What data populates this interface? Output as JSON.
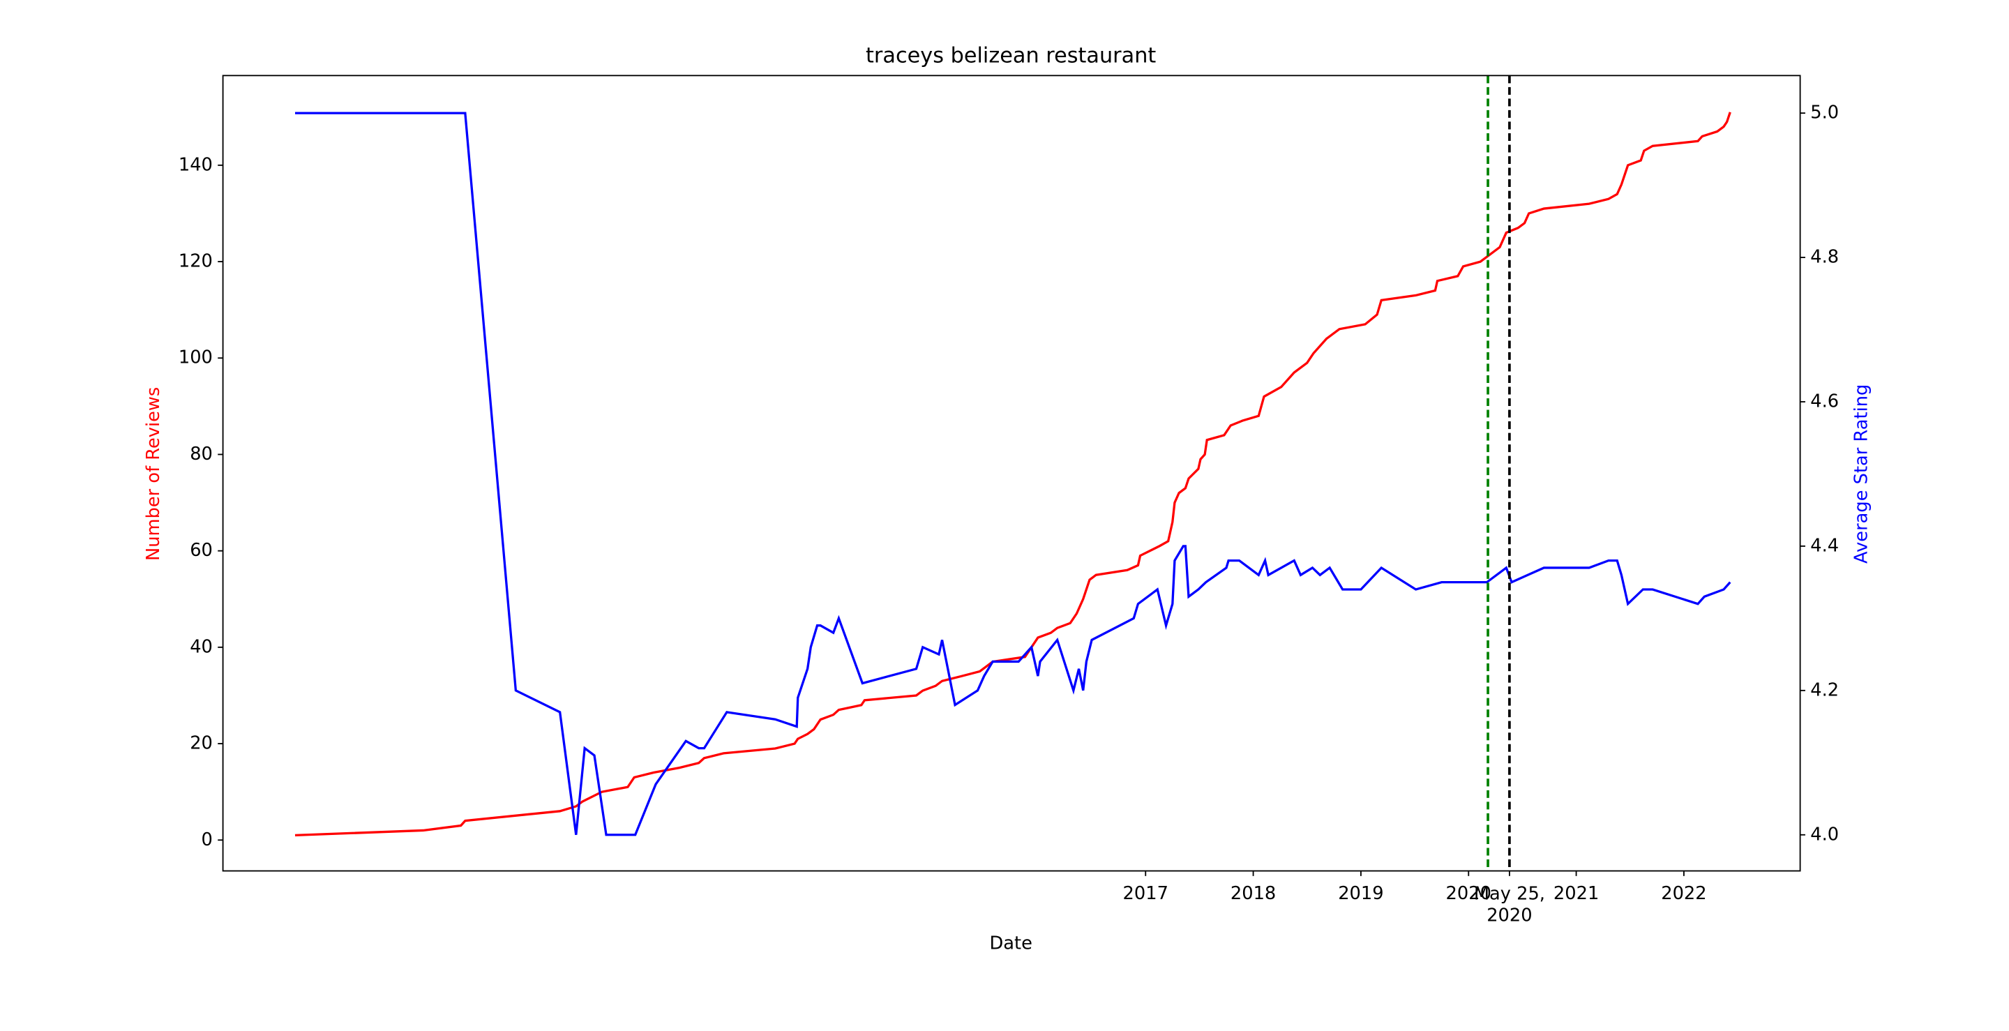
{
  "chart_data": {
    "type": "line",
    "title": "traceys belizean restaurant",
    "xlabel": "Date",
    "ylabel": "Number of Reviews",
    "y2label": "Average Star Rating",
    "ylabel_color": "red",
    "y2label_color": "blue",
    "xlim": [
      2008.43,
      2023.08
    ],
    "ylim": [
      -6.4,
      158.6
    ],
    "y2lim": [
      3.95,
      5.052
    ],
    "xticks": [
      2017,
      2018,
      2019,
      2020,
      {
        "value": 2020.38,
        "label": "May 25,\n2020"
      },
      2021,
      2022
    ],
    "yticks": [
      0,
      20,
      40,
      60,
      80,
      100,
      120,
      140
    ],
    "y2ticks": [
      {
        "value": 4,
        "label": "4.0"
      },
      4.2,
      4.4,
      4.6,
      4.8,
      {
        "value": 5,
        "label": "5.0"
      }
    ],
    "grid": false,
    "vlines": [
      {
        "x": 2020.18,
        "color": "green"
      },
      {
        "x": 2020.38,
        "color": "black"
      }
    ],
    "series": [
      {
        "color": "red",
        "axis": "y",
        "x": [
          2009.1,
          2010.29,
          2010.64,
          2010.68,
          2011.56,
          2011.71,
          2011.77,
          2011.95,
          2012.19,
          2012.25,
          2012.43,
          2012.67,
          2012.85,
          2012.9,
          2013.08,
          2013.56,
          2013.74,
          2013.77,
          2013.86,
          2013.92,
          2013.98,
          2014.1,
          2014.15,
          2014.36,
          2014.39,
          2014.87,
          2014.93,
          2015.05,
          2015.11,
          2015.29,
          2015.46,
          2015.58,
          2015.88,
          2016.0,
          2016.12,
          2016.18,
          2016.3,
          2016.36,
          2016.42,
          2016.48,
          2016.54,
          2016.83,
          2016.93,
          2016.95,
          2017.13,
          2017.21,
          2017.25,
          2017.27,
          2017.31,
          2017.37,
          2017.4,
          2017.49,
          2017.51,
          2017.55,
          2017.57,
          2017.73,
          2017.79,
          2017.9,
          2018.05,
          2018.1,
          2018.26,
          2018.38,
          2018.5,
          2018.56,
          2018.68,
          2018.74,
          2018.8,
          2019.04,
          2019.15,
          2019.19,
          2019.51,
          2019.69,
          2019.71,
          2019.9,
          2019.95,
          2020.11,
          2020.17,
          2020.29,
          2020.35,
          2020.46,
          2020.52,
          2020.56,
          2020.7,
          2021.12,
          2021.3,
          2021.38,
          2021.42,
          2021.45,
          2021.48,
          2021.6,
          2021.63,
          2021.71,
          2022.13,
          2022.17,
          2022.31,
          2022.37,
          2022.4,
          2022.43
        ],
        "values": [
          1,
          2,
          3,
          4,
          6,
          7,
          8,
          10,
          11,
          13,
          14,
          15,
          16,
          17,
          18,
          19,
          20,
          21,
          22,
          23,
          25,
          26,
          27,
          28,
          29,
          30,
          31,
          32,
          33,
          34,
          35,
          37,
          38,
          42,
          43,
          44,
          45,
          47,
          50,
          54,
          55,
          56,
          57,
          59,
          61,
          62,
          66,
          70,
          72,
          73,
          75,
          77,
          79,
          80,
          83,
          84,
          86,
          87,
          88,
          92,
          94,
          97,
          99,
          101,
          104,
          105,
          106,
          107,
          109,
          112,
          113,
          114,
          116,
          117,
          119,
          120,
          121,
          123,
          126,
          127,
          128,
          130,
          131,
          132,
          133,
          134,
          136,
          138,
          140,
          141,
          143,
          144,
          145,
          146,
          147,
          148,
          149,
          151
        ]
      },
      {
        "color": "blue",
        "axis": "y2",
        "x": [
          2009.1,
          2010.68,
          2011.15,
          2011.56,
          2011.71,
          2011.79,
          2011.88,
          2011.99,
          2012.26,
          2012.45,
          2012.73,
          2012.85,
          2012.9,
          2013.11,
          2013.56,
          2013.76,
          2013.77,
          2013.86,
          2013.89,
          2013.95,
          2013.98,
          2014.1,
          2014.15,
          2014.37,
          2014.87,
          2014.93,
          2015.08,
          2015.11,
          2015.23,
          2015.44,
          2015.5,
          2015.58,
          2015.82,
          2015.94,
          2016.0,
          2016.02,
          2016.18,
          2016.33,
          2016.38,
          2016.42,
          2016.45,
          2016.5,
          2016.89,
          2016.93,
          2017.11,
          2017.19,
          2017.25,
          2017.27,
          2017.35,
          2017.37,
          2017.4,
          2017.49,
          2017.56,
          2017.75,
          2017.77,
          2017.87,
          2018.05,
          2018.11,
          2018.14,
          2018.38,
          2018.44,
          2018.55,
          2018.62,
          2018.71,
          2018.83,
          2019.0,
          2019.19,
          2019.51,
          2019.75,
          2019.93,
          2020.17,
          2020.35,
          2020.4,
          2020.55,
          2020.7,
          2021.12,
          2021.3,
          2021.38,
          2021.42,
          2021.48,
          2021.62,
          2021.71,
          2022.13,
          2022.19,
          2022.37,
          2022.43
        ],
        "values": [
          5.0,
          5.0,
          4.2,
          4.17,
          4.0,
          4.12,
          4.11,
          4.0,
          4.0,
          4.07,
          4.13,
          4.12,
          4.12,
          4.17,
          4.16,
          4.15,
          4.19,
          4.23,
          4.26,
          4.29,
          4.29,
          4.28,
          4.3,
          4.21,
          4.23,
          4.26,
          4.25,
          4.27,
          4.18,
          4.2,
          4.22,
          4.24,
          4.24,
          4.26,
          4.22,
          4.24,
          4.27,
          4.2,
          4.23,
          4.2,
          4.24,
          4.27,
          4.3,
          4.32,
          4.34,
          4.29,
          4.32,
          4.38,
          4.4,
          4.4,
          4.33,
          4.34,
          4.35,
          4.37,
          4.38,
          4.38,
          4.36,
          4.38,
          4.36,
          4.38,
          4.36,
          4.37,
          4.36,
          4.37,
          4.34,
          4.34,
          4.37,
          4.34,
          4.35,
          4.35,
          4.35,
          4.37,
          4.35,
          4.36,
          4.37,
          4.37,
          4.38,
          4.38,
          4.36,
          4.32,
          4.34,
          4.34,
          4.32,
          4.33,
          4.34,
          4.35
        ]
      }
    ]
  }
}
